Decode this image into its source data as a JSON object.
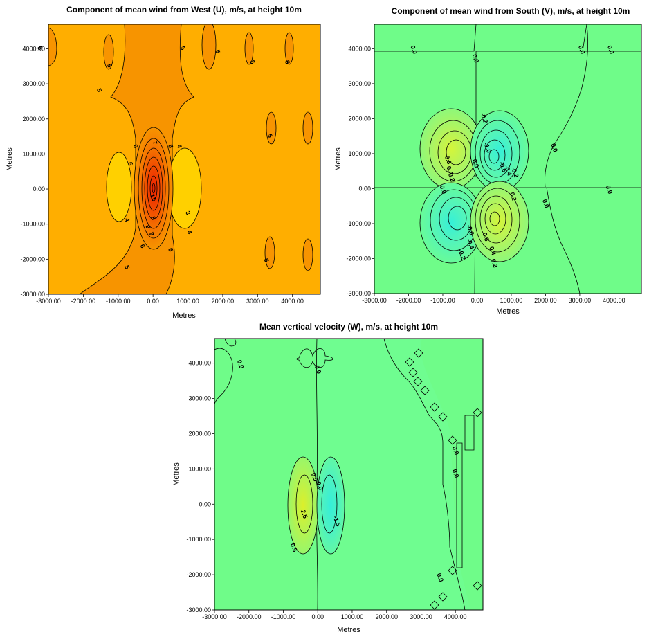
{
  "chart_data": [
    {
      "type": "heatmap",
      "title": "Component of mean wind from West (U), m/s, at height 10m",
      "xlabel": "Metres",
      "ylabel": "Metres",
      "xlim": [
        -3000,
        4800
      ],
      "ylim": [
        -3000,
        4700
      ],
      "x_ticks": [
        "-3000.00",
        "-2000.00",
        "-1000.00",
        "0.00",
        "1000.00",
        "2000.00",
        "3000.00",
        "4000.00"
      ],
      "y_ticks": [
        "-3000.00",
        "-2000.00",
        "-1000.00",
        "0.00",
        "1000.00",
        "2000.00",
        "3000.00",
        "4000.00"
      ],
      "background_color": "#ffae00",
      "contour_labels": [
        {
          "text": "5",
          "x": -3300,
          "y": 4000
        },
        {
          "text": "5",
          "x": -1300,
          "y": 3500
        },
        {
          "text": "5",
          "x": -1600,
          "y": 2800
        },
        {
          "text": "5",
          "x": 800,
          "y": 4000
        },
        {
          "text": "5",
          "x": 1800,
          "y": 3900
        },
        {
          "text": "5",
          "x": 2800,
          "y": 3600
        },
        {
          "text": "5",
          "x": 3800,
          "y": 3600
        },
        {
          "text": "5",
          "x": 3300,
          "y": 1500
        },
        {
          "text": "6",
          "x": -700,
          "y": 700
        },
        {
          "text": "6",
          "x": -550,
          "y": 1200
        },
        {
          "text": "7",
          "x": 0,
          "y": 1300
        },
        {
          "text": "5",
          "x": 450,
          "y": 1200
        },
        {
          "text": "4",
          "x": 700,
          "y": 1200
        },
        {
          "text": "4",
          "x": -800,
          "y": -900
        },
        {
          "text": "11",
          "x": -50,
          "y": -250
        },
        {
          "text": "8",
          "x": -50,
          "y": -850
        },
        {
          "text": "9",
          "x": -200,
          "y": -1100
        },
        {
          "text": "7",
          "x": -100,
          "y": -1300
        },
        {
          "text": "6",
          "x": -350,
          "y": -1650
        },
        {
          "text": "3",
          "x": 950,
          "y": -700
        },
        {
          "text": "4",
          "x": 1000,
          "y": -1250
        },
        {
          "text": "5",
          "x": 450,
          "y": -1750
        },
        {
          "text": "5",
          "x": -800,
          "y": -2250
        },
        {
          "text": "5",
          "x": 3200,
          "y": -2050
        }
      ]
    },
    {
      "type": "heatmap",
      "title": "Component of mean wind from South (V), m/s, at height 10m",
      "xlabel": "Metres",
      "ylabel": "Metres",
      "xlim": [
        -3000,
        4800
      ],
      "ylim": [
        -3000,
        4700
      ],
      "x_ticks": [
        "-3000.00",
        "-2000.00",
        "-1000.00",
        "0.00",
        "1000.00",
        "2000.00",
        "3000.00",
        "4000.00"
      ],
      "y_ticks": [
        "-3000.00",
        "-2000.00",
        "-1000.00",
        "0.00",
        "1000.00",
        "2000.00",
        "3000.00",
        "4000.00"
      ],
      "background_color": "#6ffc89",
      "contour_labels": [
        {
          "text": "0.0",
          "x": -1900,
          "y": 3950
        },
        {
          "text": "0.0",
          "x": -100,
          "y": 3700
        },
        {
          "text": "0.0",
          "x": 3000,
          "y": 3950
        },
        {
          "text": "0.0",
          "x": 3850,
          "y": 3950
        },
        {
          "text": "-0.2",
          "x": 150,
          "y": 2000
        },
        {
          "text": "-1.0",
          "x": 250,
          "y": 1150
        },
        {
          "text": "0.0",
          "x": -100,
          "y": 700
        },
        {
          "text": "0.8",
          "x": -900,
          "y": 800
        },
        {
          "text": "0.4",
          "x": -850,
          "y": 500
        },
        {
          "text": "0.2",
          "x": -800,
          "y": 300
        },
        {
          "text": "-0.6",
          "x": 700,
          "y": 600
        },
        {
          "text": "-0.4",
          "x": 850,
          "y": 500
        },
        {
          "text": "-0.2",
          "x": 1050,
          "y": 450
        },
        {
          "text": "0.0",
          "x": 2200,
          "y": 1150
        },
        {
          "text": "0.0",
          "x": -1050,
          "y": -50
        },
        {
          "text": "0.0",
          "x": 3800,
          "y": -50
        },
        {
          "text": "0.2",
          "x": 1000,
          "y": -250
        },
        {
          "text": "0.0",
          "x": 1950,
          "y": -450
        },
        {
          "text": "-0.6",
          "x": -250,
          "y": -1200
        },
        {
          "text": "-0.4",
          "x": -250,
          "y": -1600
        },
        {
          "text": "-0.2",
          "x": -500,
          "y": -1900
        },
        {
          "text": "0.6",
          "x": 200,
          "y": -1400
        },
        {
          "text": "0.4",
          "x": 400,
          "y": -1800
        },
        {
          "text": "0.2",
          "x": 450,
          "y": -2150
        }
      ]
    },
    {
      "type": "heatmap",
      "title": "Mean vertical velocity (W), m/s, at height 10m",
      "xlabel": "Metres",
      "ylabel": "Metres",
      "xlim": [
        -3000,
        4800
      ],
      "ylim": [
        -3000,
        4700
      ],
      "x_ticks": [
        "-3000.00",
        "-2000.00",
        "-1000.00",
        "0.00",
        "1000.00",
        "2000.00",
        "3000.00",
        "4000.00"
      ],
      "y_ticks": [
        "-3000.00",
        "-2000.00",
        "-1000.00",
        "0.00",
        "1000.00",
        "2000.00",
        "3000.00",
        "4000.00"
      ],
      "background_color": "#6ffc89",
      "contour_labels": [
        {
          "text": "0.0",
          "x": -2300,
          "y": 3950
        },
        {
          "text": "0.0",
          "x": -50,
          "y": 3800
        },
        {
          "text": "0.5",
          "x": -150,
          "y": 750
        },
        {
          "text": "0.0",
          "x": 0,
          "y": 500
        },
        {
          "text": "2.5",
          "x": -450,
          "y": -300
        },
        {
          "text": "-1.5",
          "x": 500,
          "y": -500
        },
        {
          "text": "0.5",
          "x": -750,
          "y": -1250
        },
        {
          "text": "0.0",
          "x": 3950,
          "y": 1500
        },
        {
          "text": "0.0",
          "x": 3950,
          "y": 850
        },
        {
          "text": "0.0",
          "x": 3500,
          "y": -2100
        }
      ]
    }
  ]
}
